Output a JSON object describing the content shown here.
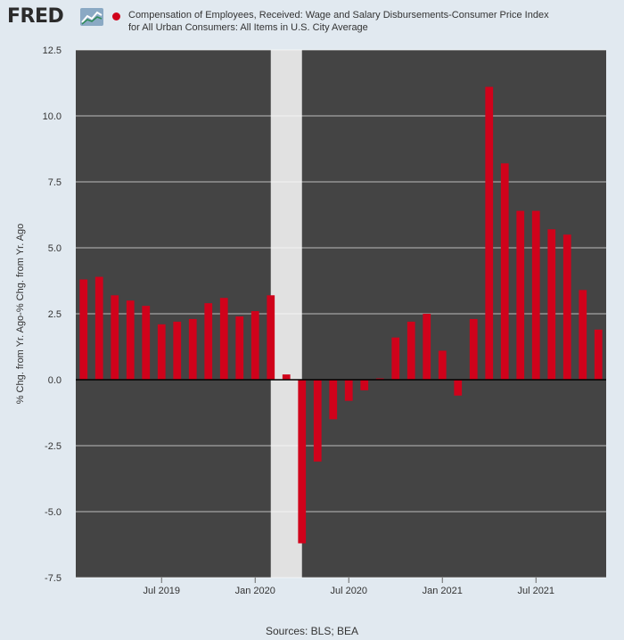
{
  "header": {
    "logo_text": "FRED",
    "logo_icon": "line-chart-icon",
    "series_title_line1": "Compensation of Employees, Received: Wage and Salary Disbursements-Consumer Price Index",
    "series_title_line2": "for All Urban Consumers: All Items in U.S. City Average"
  },
  "footer": {
    "sources": "Sources: BLS; BEA"
  },
  "colors": {
    "plot_bg": "#444444",
    "bar": "#d0021b",
    "recession": "#e1e1e1",
    "page_bg": "#e1e9f0"
  },
  "chart_data": {
    "type": "bar",
    "ylabel": "% Chg. from Yr. Ago-% Chg. from Yr. Ago",
    "ylim": [
      -7.5,
      12.5
    ],
    "yticks": [
      "12.5",
      "10.0",
      "7.5",
      "5.0",
      "2.5",
      "0.0",
      "-2.5",
      "-5.0",
      "-7.5"
    ],
    "ytick_values": [
      12.5,
      10.0,
      7.5,
      5.0,
      2.5,
      0.0,
      -2.5,
      -5.0,
      -7.5
    ],
    "xticks": [
      {
        "label": "Jul 2019",
        "index": 5
      },
      {
        "label": "Jan 2020",
        "index": 11
      },
      {
        "label": "Jul 2020",
        "index": 17
      },
      {
        "label": "Jan 2021",
        "index": 23
      },
      {
        "label": "Jul 2021",
        "index": 29
      }
    ],
    "recession": {
      "start_index": 12.5,
      "end_index": 14.5
    },
    "categories": [
      "2019-02",
      "2019-03",
      "2019-04",
      "2019-05",
      "2019-06",
      "2019-07",
      "2019-08",
      "2019-09",
      "2019-10",
      "2019-11",
      "2019-12",
      "2020-01",
      "2020-02",
      "2020-03",
      "2020-04",
      "2020-05",
      "2020-06",
      "2020-07",
      "2020-08",
      "2020-09",
      "2020-10",
      "2020-11",
      "2020-12",
      "2021-01",
      "2021-02",
      "2021-03",
      "2021-04",
      "2021-05",
      "2021-06",
      "2021-07",
      "2021-08",
      "2021-09",
      "2021-10",
      "2021-11"
    ],
    "values": [
      3.8,
      3.9,
      3.2,
      3.0,
      2.8,
      2.1,
      2.2,
      2.3,
      2.9,
      3.1,
      2.4,
      2.6,
      3.2,
      0.2,
      -6.2,
      -3.1,
      -1.5,
      -0.8,
      -0.4,
      0.05,
      1.6,
      2.2,
      2.5,
      1.1,
      -0.6,
      2.3,
      11.1,
      8.2,
      6.4,
      6.4,
      5.7,
      5.5,
      3.4,
      1.9
    ],
    "grid": true,
    "legend": "top"
  }
}
